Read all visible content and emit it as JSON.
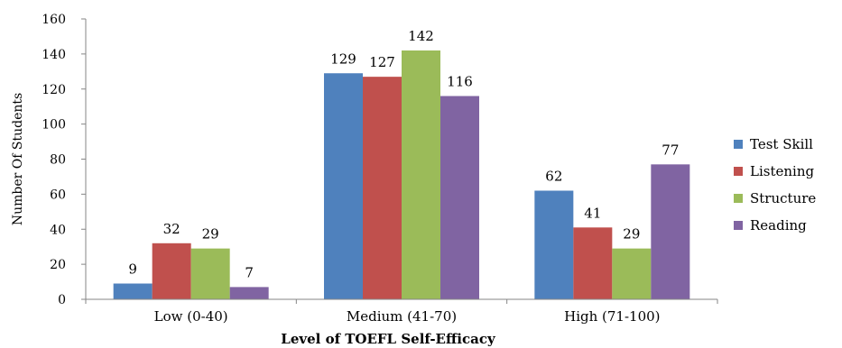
{
  "chart_data": {
    "type": "bar",
    "categories": [
      "Low (0-40)",
      "Medium (41-70)",
      "High (71-100)"
    ],
    "series": [
      {
        "name": "Test Skill",
        "values": [
          9,
          129,
          62
        ],
        "color": "#4F81BD"
      },
      {
        "name": "Listening",
        "values": [
          32,
          127,
          41
        ],
        "color": "#C0504D"
      },
      {
        "name": "Structure",
        "values": [
          29,
          142,
          29
        ],
        "color": "#9BBB59"
      },
      {
        "name": "Reading",
        "values": [
          7,
          116,
          77
        ],
        "color": "#8064A2"
      }
    ],
    "xlabel": "Level of TOEFL Self-Efficacy",
    "ylabel": "Number Of Students",
    "ylim": [
      0,
      160
    ],
    "yticks": [
      0,
      20,
      40,
      60,
      80,
      100,
      120,
      140,
      160
    ],
    "grid": false,
    "legend_position": "right"
  }
}
